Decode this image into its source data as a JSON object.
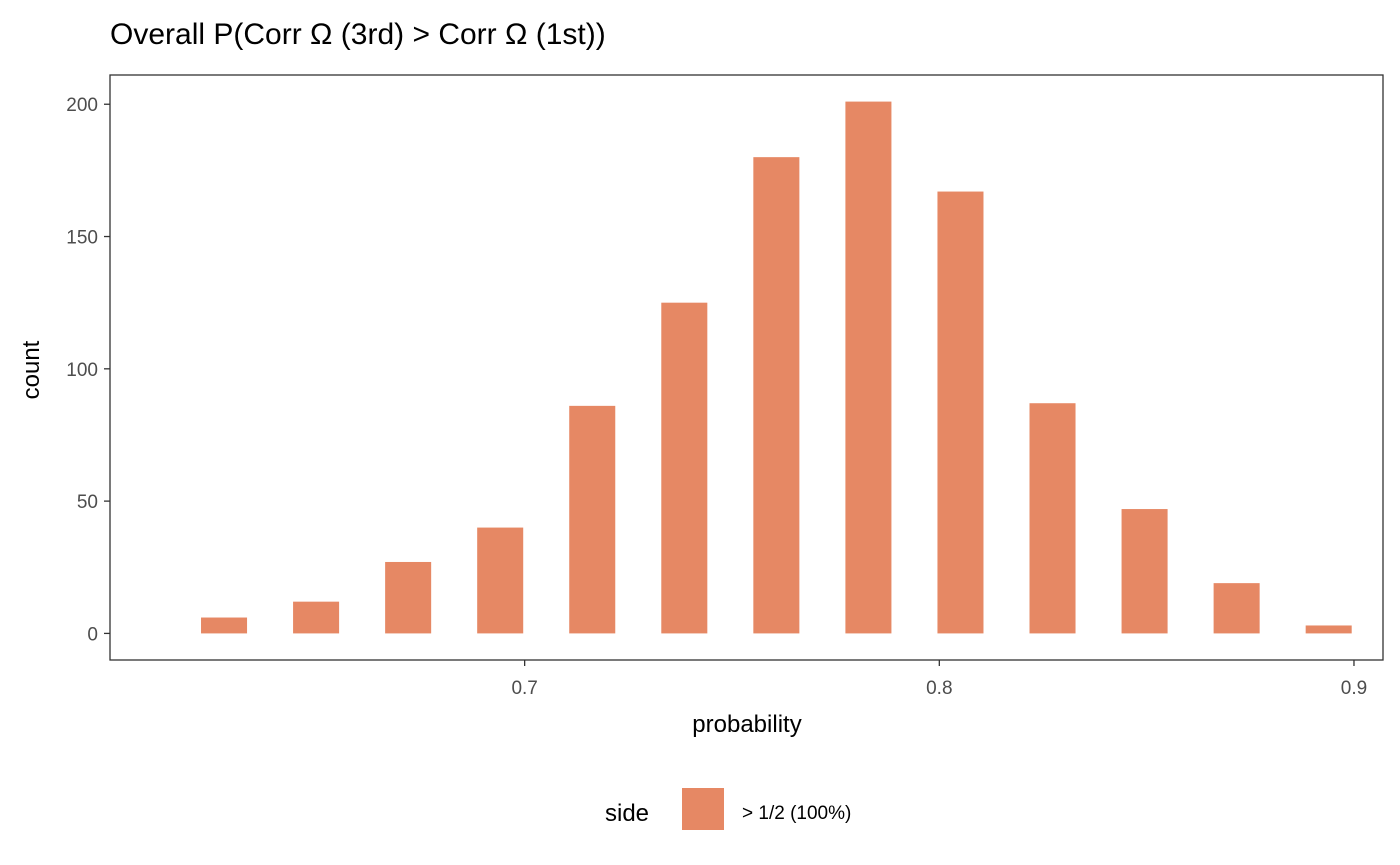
{
  "chart_data": {
    "type": "bar",
    "title": "Overall P(Corr Ω (3rd) > Corr Ω (1st))",
    "xlabel": "probability",
    "ylabel": "count",
    "x": [
      0.6275,
      0.6497,
      0.6719,
      0.6941,
      0.7163,
      0.7385,
      0.7607,
      0.7829,
      0.8051,
      0.8273,
      0.8495,
      0.8717,
      0.8939
    ],
    "values": [
      6,
      12,
      27,
      40,
      86,
      125,
      180,
      201,
      167,
      87,
      47,
      19,
      3
    ],
    "bar_width": 0.0111,
    "xlim": [
      0.6,
      0.907
    ],
    "ylim": [
      -10.05,
      211.05
    ],
    "x_ticks": [
      0.7,
      0.8,
      0.9
    ],
    "x_tick_labels": [
      "0.7",
      "0.8",
      "0.9"
    ],
    "y_ticks": [
      0,
      50,
      100,
      150,
      200
    ],
    "y_tick_labels": [
      "0",
      "50",
      "100",
      "150",
      "200"
    ],
    "grid": false,
    "bar_color": "#E68864",
    "legend": {
      "title": "side",
      "entries": [
        {
          "label": "> 1/2 (100%)",
          "color": "#E68864"
        }
      ],
      "position": "bottom"
    }
  }
}
